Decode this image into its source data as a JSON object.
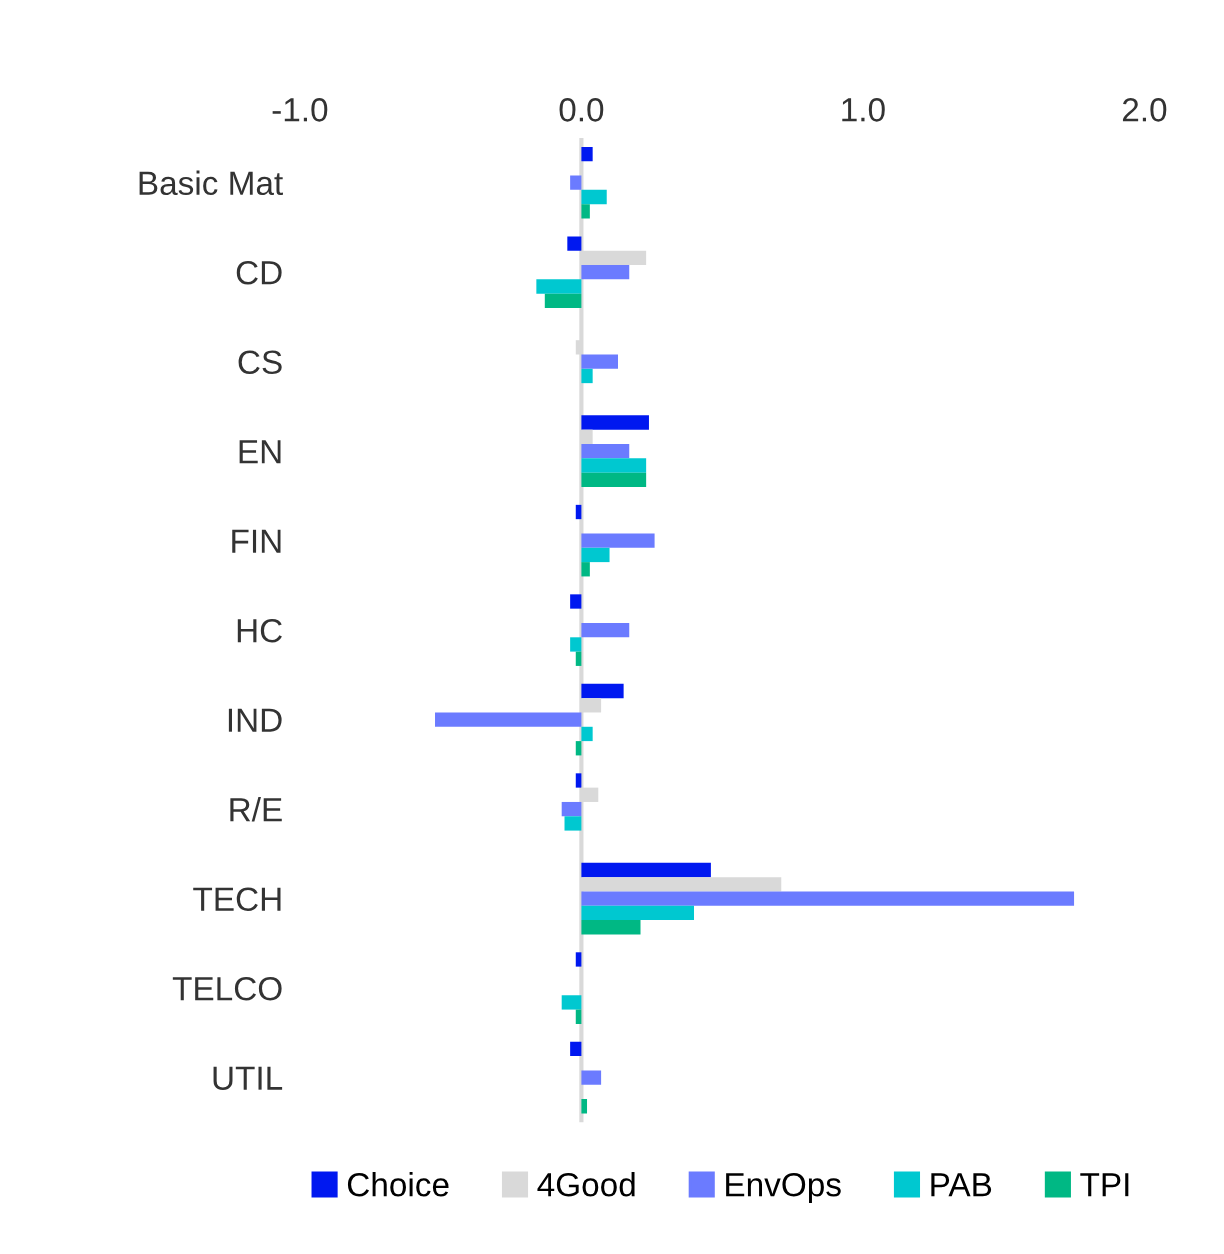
{
  "chart_data": {
    "type": "bar",
    "orientation": "horizontal",
    "categories": [
      "Basic Mat",
      "CD",
      "CS",
      "EN",
      "FIN",
      "HC",
      "IND",
      "R/E",
      "TECH",
      "TELCO",
      "UTIL"
    ],
    "series": [
      {
        "name": "Choice",
        "color": "#0018f0",
        "values": [
          0.04,
          -0.05,
          0,
          0.24,
          -0.02,
          -0.04,
          0.15,
          -0.02,
          0.46,
          -0.02,
          -0.04
        ]
      },
      {
        "name": "4Good",
        "color": "#d9d9d9",
        "values": [
          null,
          0.23,
          -0.02,
          0.04,
          null,
          null,
          0.07,
          0.06,
          0.71,
          0,
          null
        ]
      },
      {
        "name": "EnvOps",
        "color": "#6b7bff",
        "values": [
          -0.04,
          0.17,
          0.13,
          0.17,
          0.26,
          0.17,
          -0.52,
          -0.07,
          1.75,
          0,
          0.07
        ]
      },
      {
        "name": "PAB",
        "color": "#00c8d0",
        "values": [
          0.09,
          -0.16,
          0.04,
          0.23,
          0.1,
          -0.04,
          0.04,
          -0.06,
          0.4,
          -0.07,
          0
        ]
      },
      {
        "name": "TPI",
        "color": "#00b884",
        "values": [
          0.03,
          -0.13,
          0,
          0.23,
          0.03,
          -0.02,
          -0.02,
          0,
          0.21,
          -0.02,
          0.02
        ]
      }
    ],
    "xlim": [
      -1.0,
      2.0
    ],
    "xticks": [
      {
        "value": -1.0,
        "label": "-1.0"
      },
      {
        "value": 0.0,
        "label": "0.0"
      },
      {
        "value": 1.0,
        "label": "1.0"
      },
      {
        "value": 2.0,
        "label": "2.0"
      }
    ],
    "ref_lines": [
      {
        "axis": "x",
        "value": 0,
        "color": "#d9d9d9"
      }
    ],
    "grid": false,
    "legend": "bottom"
  }
}
